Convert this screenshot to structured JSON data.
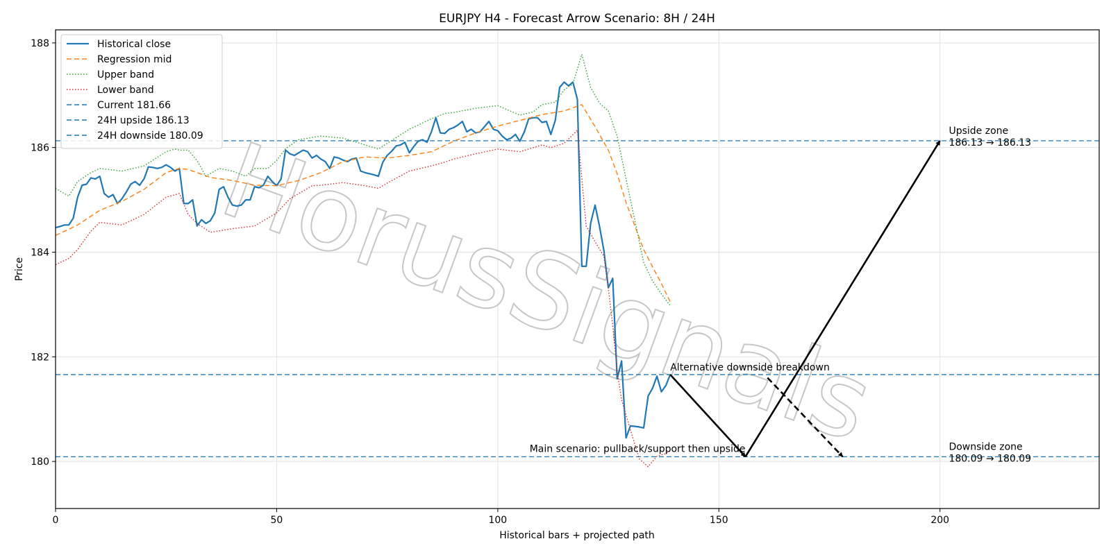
{
  "chart_data": {
    "type": "line",
    "title": "EURJPY H4 - Forecast Arrow Scenario: 8H / 24H",
    "xlabel": "Historical bars + projected path",
    "ylabel": "Price",
    "xlim": [
      0,
      236
    ],
    "ylim": [
      179.1,
      188.25
    ],
    "xticks": [
      0,
      50,
      100,
      150,
      200
    ],
    "yticks": [
      180,
      182,
      184,
      186,
      188
    ],
    "grid": true,
    "legend_position": "top-left",
    "watermark": "HorusSignals",
    "series": [
      {
        "name": "Historical close",
        "style": "solid",
        "color": "#1f77b4",
        "x": [
          0,
          1,
          2,
          3,
          4,
          5,
          6,
          7,
          8,
          9,
          10,
          11,
          12,
          13,
          14,
          15,
          16,
          17,
          18,
          19,
          20,
          21,
          22,
          23,
          24,
          25,
          26,
          27,
          28,
          29,
          30,
          31,
          32,
          33,
          34,
          35,
          36,
          37,
          38,
          39,
          40,
          41,
          42,
          43,
          44,
          45,
          46,
          47,
          48,
          49,
          50,
          51,
          52,
          53,
          54,
          55,
          56,
          57,
          58,
          59,
          60,
          61,
          62,
          63,
          64,
          65,
          66,
          67,
          68,
          69,
          70,
          71,
          72,
          73,
          74,
          75,
          76,
          77,
          78,
          79,
          80,
          81,
          82,
          83,
          84,
          85,
          86,
          87,
          88,
          89,
          90,
          91,
          92,
          93,
          94,
          95,
          96,
          97,
          98,
          99,
          100,
          101,
          102,
          103,
          104,
          105,
          106,
          107,
          108,
          109,
          110,
          111,
          112,
          113,
          114,
          115,
          116,
          117,
          118,
          119,
          120,
          121,
          122,
          123,
          124,
          125,
          126,
          127,
          128,
          129,
          130,
          131,
          132,
          133,
          134,
          135,
          136,
          137,
          138,
          139
        ],
        "values": [
          184.47,
          184.49,
          184.52,
          184.52,
          184.65,
          185.05,
          185.28,
          185.3,
          185.42,
          185.4,
          185.45,
          185.12,
          185.05,
          185.1,
          184.93,
          185.02,
          185.15,
          185.3,
          185.35,
          185.28,
          185.4,
          185.63,
          185.62,
          185.6,
          185.62,
          185.67,
          185.62,
          185.55,
          185.6,
          184.93,
          184.93,
          185.0,
          184.5,
          184.62,
          184.55,
          184.6,
          184.75,
          185.2,
          185.25,
          185.05,
          184.9,
          184.88,
          184.9,
          185.0,
          185.0,
          185.25,
          185.23,
          185.28,
          185.45,
          185.35,
          185.27,
          185.4,
          185.95,
          185.88,
          185.85,
          185.9,
          185.95,
          185.92,
          185.8,
          185.85,
          185.78,
          185.73,
          185.6,
          185.82,
          185.8,
          185.76,
          185.73,
          185.78,
          185.8,
          185.55,
          185.52,
          185.5,
          185.48,
          185.45,
          185.72,
          185.85,
          185.93,
          186.03,
          186.05,
          186.1,
          185.9,
          186.02,
          186.12,
          186.15,
          186.1,
          186.3,
          186.57,
          186.28,
          186.27,
          186.35,
          186.38,
          186.43,
          186.5,
          186.3,
          186.35,
          186.28,
          186.3,
          186.4,
          186.5,
          186.35,
          186.32,
          186.22,
          186.15,
          186.18,
          186.25,
          186.12,
          186.3,
          186.55,
          186.57,
          186.57,
          186.48,
          186.5,
          186.25,
          186.52,
          187.15,
          187.25,
          187.18,
          187.25,
          186.92,
          183.73,
          183.73,
          184.55,
          184.9,
          184.5,
          184.03,
          183.32,
          183.5,
          181.58,
          181.92,
          180.45,
          180.68,
          180.67,
          180.66,
          180.64,
          181.25,
          181.4,
          181.63,
          181.33,
          181.45,
          181.66
        ]
      },
      {
        "name": "Regression mid",
        "style": "dashed",
        "color": "#ff7f0e",
        "x": [
          0,
          5,
          10,
          15,
          20,
          25,
          28,
          30,
          35,
          40,
          45,
          50,
          55,
          60,
          65,
          70,
          75,
          80,
          85,
          90,
          95,
          100,
          105,
          110,
          115,
          119,
          122,
          125,
          127,
          129,
          131,
          133,
          135,
          137,
          139
        ],
        "values": [
          184.32,
          184.52,
          184.8,
          184.97,
          185.2,
          185.52,
          185.6,
          185.58,
          185.43,
          185.37,
          185.28,
          185.27,
          185.37,
          185.52,
          185.73,
          185.82,
          185.8,
          185.85,
          185.92,
          186.12,
          186.28,
          186.41,
          186.52,
          186.63,
          186.7,
          186.82,
          186.4,
          185.95,
          185.5,
          184.95,
          184.5,
          184.05,
          183.72,
          183.4,
          183.05
        ]
      },
      {
        "name": "Upper band",
        "style": "dotted",
        "color": "#2ca02c",
        "x": [
          0,
          3,
          5,
          8,
          10,
          15,
          20,
          25,
          27,
          28,
          30,
          32,
          34,
          37,
          40,
          43,
          45,
          48,
          50,
          52,
          55,
          60,
          65,
          70,
          73,
          75,
          80,
          85,
          88,
          90,
          95,
          100,
          105,
          108,
          110,
          113,
          115,
          117,
          119,
          121,
          123,
          125,
          127,
          129,
          131,
          133,
          135,
          137,
          139
        ],
        "values": [
          185.22,
          185.07,
          185.35,
          185.52,
          185.6,
          185.55,
          185.65,
          185.92,
          185.97,
          185.95,
          185.95,
          185.75,
          185.45,
          185.6,
          185.55,
          185.45,
          185.6,
          185.6,
          185.75,
          185.98,
          186.15,
          186.22,
          186.18,
          186.05,
          185.97,
          186.08,
          186.35,
          186.55,
          186.65,
          186.67,
          186.75,
          186.8,
          186.62,
          186.68,
          186.82,
          186.87,
          187.1,
          187.22,
          187.78,
          187.15,
          186.85,
          186.7,
          186.22,
          185.4,
          184.6,
          183.8,
          183.45,
          183.2,
          182.98
        ]
      },
      {
        "name": "Lower band",
        "style": "dotted",
        "color": "#d62728",
        "x": [
          0,
          3,
          5,
          8,
          10,
          15,
          20,
          25,
          28,
          30,
          32,
          35,
          38,
          40,
          45,
          50,
          53,
          55,
          58,
          60,
          65,
          70,
          73,
          75,
          80,
          85,
          88,
          90,
          95,
          100,
          105,
          110,
          112,
          115,
          118,
          120,
          122,
          124,
          125,
          126,
          127,
          128,
          130,
          132,
          134,
          136,
          138,
          139
        ],
        "values": [
          183.76,
          183.88,
          184.05,
          184.4,
          184.57,
          184.52,
          184.72,
          185.05,
          185.12,
          184.72,
          184.55,
          184.38,
          184.42,
          184.45,
          184.5,
          184.75,
          185.02,
          185.12,
          185.27,
          185.28,
          185.33,
          185.27,
          185.22,
          185.32,
          185.55,
          185.65,
          185.72,
          185.78,
          185.88,
          185.97,
          185.92,
          186.05,
          186.0,
          186.08,
          186.33,
          184.5,
          184.2,
          183.92,
          183.3,
          182.6,
          181.72,
          181.18,
          180.6,
          180.05,
          179.9,
          180.1,
          180.15,
          180.2
        ]
      }
    ],
    "horizontal_lines": [
      {
        "name": "Current 181.66",
        "value": 181.66,
        "style": "dashed",
        "color": "#1f77b4"
      },
      {
        "name": "24H upside 186.13",
        "value": 186.13,
        "style": "dashed",
        "color": "#1f77b4"
      },
      {
        "name": "24H downside 180.09",
        "value": 180.09,
        "style": "dashed",
        "color": "#1f77b4"
      }
    ],
    "arrows": [
      {
        "name": "main-pullback",
        "from": [
          139,
          181.66
        ],
        "to": [
          156,
          180.09
        ],
        "style": "solid"
      },
      {
        "name": "main-upside",
        "from": [
          156,
          180.09
        ],
        "to": [
          200,
          186.13
        ],
        "style": "solid"
      },
      {
        "name": "alternative-breakdown",
        "from": [
          161,
          181.6
        ],
        "to": [
          178,
          180.09
        ],
        "style": "dashed"
      }
    ],
    "annotations": [
      {
        "name": "upside-zone-title",
        "text": "Upside zone",
        "x": 202,
        "y": 186.13,
        "anchor": "start",
        "dy": -10
      },
      {
        "name": "upside-zone-range",
        "text": "186.13 → 186.13",
        "x": 202,
        "y": 186.13,
        "anchor": "start",
        "dy": 7
      },
      {
        "name": "downside-zone-title",
        "text": "Downside zone",
        "x": 202,
        "y": 180.09,
        "anchor": "start",
        "dy": -10
      },
      {
        "name": "downside-zone-range",
        "text": "180.09 → 180.09",
        "x": 202,
        "y": 180.09,
        "anchor": "start",
        "dy": 7
      },
      {
        "name": "alternative-scenario-label",
        "text": "Alternative downside breakdown",
        "x": 139,
        "y": 181.66,
        "anchor": "start",
        "dy": -6
      },
      {
        "name": "main-scenario-label",
        "text": "Main scenario: pullback/support then upside",
        "x": 156,
        "y": 180.09,
        "anchor": "end",
        "dy": -7
      }
    ]
  }
}
